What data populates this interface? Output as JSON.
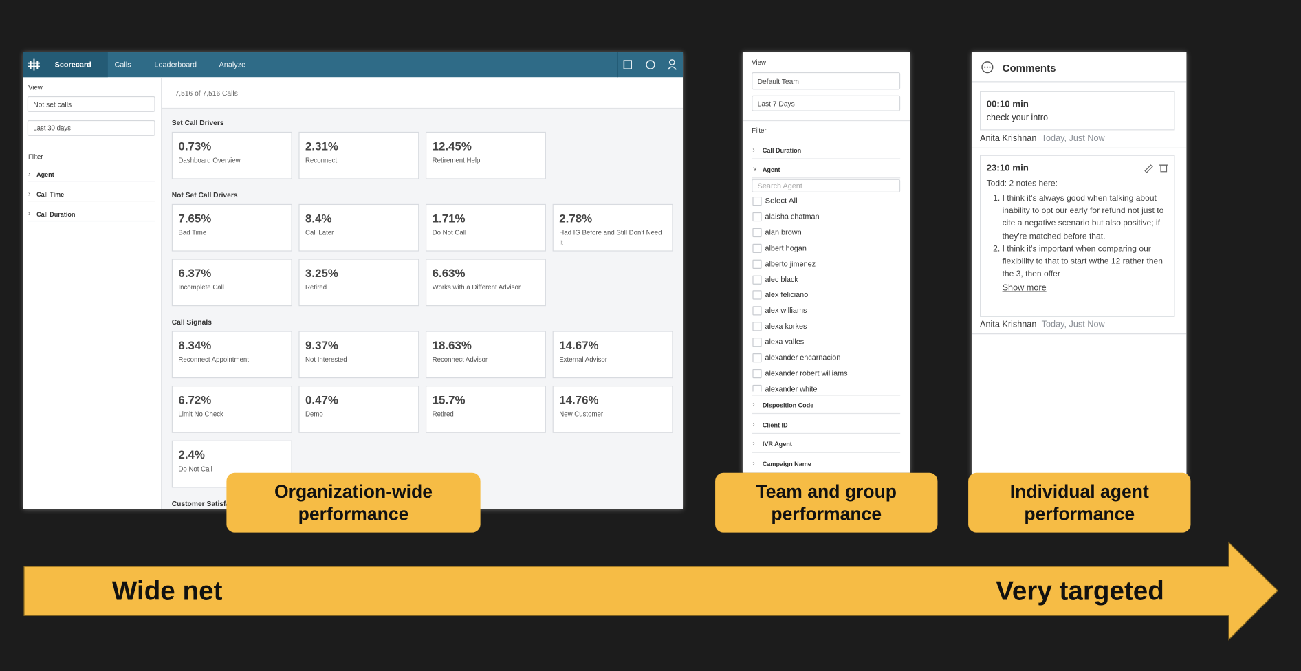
{
  "org": {
    "nav": [
      "Scorecard",
      "Calls",
      "Leaderboard",
      "Analyze"
    ],
    "view_label": "View",
    "view_select": "Not set calls",
    "date_select": "Last 30 days",
    "filter_label": "Filter",
    "filters": [
      "Agent",
      "Call Time",
      "Call Duration"
    ],
    "count": "7,516 of 7,516 Calls",
    "sections": [
      {
        "title": "Set Call Drivers",
        "rows": [
          [
            {
              "value": "0.73%",
              "label": "Dashboard Overview"
            },
            {
              "value": "2.31%",
              "label": "Reconnect"
            },
            {
              "value": "12.45%",
              "label": "Retirement Help"
            }
          ]
        ]
      },
      {
        "title": "Not Set Call Drivers",
        "rows": [
          [
            {
              "value": "7.65%",
              "label": "Bad Time"
            },
            {
              "value": "8.4%",
              "label": "Call Later"
            },
            {
              "value": "1.71%",
              "label": "Do Not Call"
            },
            {
              "value": "2.78%",
              "label": "Had IG Before and Still Don't Need It"
            }
          ],
          [
            {
              "value": "6.37%",
              "label": "Incomplete Call"
            },
            {
              "value": "3.25%",
              "label": "Retired"
            },
            {
              "value": "6.63%",
              "label": "Works with a Different Advisor"
            }
          ]
        ]
      },
      {
        "title": "Call Signals",
        "rows": [
          [
            {
              "value": "8.34%",
              "label": "Reconnect Appointment"
            },
            {
              "value": "9.37%",
              "label": "Not Interested"
            },
            {
              "value": "18.63%",
              "label": "Reconnect Advisor"
            },
            {
              "value": "14.67%",
              "label": "External Advisor"
            }
          ],
          [
            {
              "value": "6.72%",
              "label": "Limit No Check"
            },
            {
              "value": "0.47%",
              "label": "Demo"
            },
            {
              "value": "15.7%",
              "label": "Retired"
            },
            {
              "value": "14.76%",
              "label": "New Customer"
            }
          ],
          [
            {
              "value": "2.4%",
              "label": "Do Not Call"
            }
          ]
        ]
      },
      {
        "title": "Customer Satisfaction",
        "rows": []
      }
    ]
  },
  "team": {
    "view_label": "View",
    "view_select": "Default Team",
    "date_select": "Last 7 Days",
    "filter_label": "Filter",
    "filters_top": [
      "Call Duration",
      "Agent"
    ],
    "search_placeholder": "Search Agent",
    "select_all": "Select All",
    "agents": [
      "alaisha chatman",
      "alan brown",
      "albert hogan",
      "alberto jimenez",
      "alec black",
      "alex feliciano",
      "alex williams",
      "alexa korkes",
      "alexa valles",
      "alexander encarnacion",
      "alexander robert williams",
      "alexander white"
    ],
    "filters_bottom": [
      "Disposition Code",
      "Client ID",
      "IVR Agent",
      "Campaign Name"
    ]
  },
  "comments": {
    "title": "Comments",
    "items": [
      {
        "time": "00:10 min",
        "text": "check your intro",
        "author": "Anita Krishnan",
        "when": "Today, Just Now"
      },
      {
        "time": "23:10 min",
        "text": "Todd: 2 notes here:",
        "notes": [
          "I think it's always good when talking about inability to opt our early for refund not just to cite a negative scenario but also positive; if they're matched before that.",
          "I think it's important when comparing our flexibility to that to start w/the 12 rather then the 3, then offer"
        ],
        "more": "Show more",
        "author": "Anita Krishnan",
        "when": "Today, Just Now"
      }
    ]
  },
  "callouts": [
    "Organization-wide performance",
    "Team and group performance",
    "Individual agent performance"
  ],
  "arrow": {
    "left": "Wide net",
    "right": "Very targeted"
  }
}
